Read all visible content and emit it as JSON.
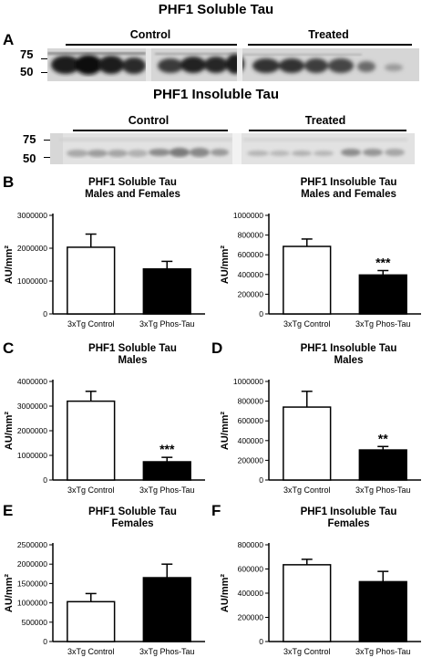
{
  "blots": [
    {
      "title": "PHF1 Soluble Tau",
      "panel_letter": "A",
      "mw_markers": [
        "75",
        "50"
      ],
      "groups": [
        "Control",
        "Treated"
      ],
      "image_label": "western-blot-soluble"
    },
    {
      "title": "PHF1 Insoluble Tau",
      "panel_letter": "",
      "mw_markers": [
        "75",
        "50"
      ],
      "groups": [
        "Control",
        "Treated"
      ],
      "image_label": "western-blot-insoluble"
    }
  ],
  "colors": {
    "control_bar": "#ffffff",
    "treated_bar": "#000000",
    "axis": "#000000"
  },
  "chart_data": [
    {
      "type": "bar",
      "panel_letter": "B",
      "title": "PHF1 Soluble Tau",
      "subtitle": "Males and Females",
      "xlabel": "",
      "ylabel": "AU/mm²",
      "categories": [
        "3xTg Control",
        "3xTg Phos-Tau"
      ],
      "values": [
        2030000,
        1370000
      ],
      "errors": [
        400000,
        230000
      ],
      "significance": [
        "",
        ""
      ],
      "ylim": [
        0,
        3000000
      ],
      "yticks": [
        0,
        1000000,
        2000000,
        3000000
      ],
      "ytick_labels": [
        "0",
        "1000000",
        "2000000",
        "3000000"
      ]
    },
    {
      "type": "bar",
      "panel_letter": "",
      "title": "PHF1 Insoluble Tau",
      "subtitle": "Males and Females",
      "xlabel": "",
      "ylabel": "AU/mm²",
      "categories": [
        "3xTg Control",
        "3xTg Phos-Tau"
      ],
      "values": [
        685000,
        395000
      ],
      "errors": [
        75000,
        45000
      ],
      "significance": [
        "",
        "***"
      ],
      "ylim": [
        0,
        1000000
      ],
      "yticks": [
        0,
        200000,
        400000,
        600000,
        800000,
        1000000
      ],
      "ytick_labels": [
        "0",
        "200000",
        "400000",
        "600000",
        "800000",
        "1000000"
      ]
    },
    {
      "type": "bar",
      "panel_letter": "C",
      "title": "PHF1 Soluble Tau",
      "subtitle": "Males",
      "xlabel": "",
      "ylabel": "AU/mm²",
      "categories": [
        "3xTg Control",
        "3xTg Phos-Tau"
      ],
      "values": [
        3200000,
        740000
      ],
      "errors": [
        400000,
        180000
      ],
      "significance": [
        "",
        "***"
      ],
      "ylim": [
        0,
        4000000
      ],
      "yticks": [
        0,
        1000000,
        2000000,
        3000000,
        4000000
      ],
      "ytick_labels": [
        "0",
        "1000000",
        "2000000",
        "3000000",
        "4000000"
      ]
    },
    {
      "type": "bar",
      "panel_letter": "D",
      "title": "PHF1 Insoluble Tau",
      "subtitle": "Males",
      "xlabel": "",
      "ylabel": "AU/mm²",
      "categories": [
        "3xTg Control",
        "3xTg Phos-Tau"
      ],
      "values": [
        740000,
        305000
      ],
      "errors": [
        160000,
        35000
      ],
      "significance": [
        "",
        "**"
      ],
      "ylim": [
        0,
        1000000
      ],
      "yticks": [
        0,
        200000,
        400000,
        600000,
        800000,
        1000000
      ],
      "ytick_labels": [
        "0",
        "200000",
        "400000",
        "600000",
        "800000",
        "1000000"
      ]
    },
    {
      "type": "bar",
      "panel_letter": "E",
      "title": "PHF1 Soluble Tau",
      "subtitle": "Females",
      "xlabel": "",
      "ylabel": "AU/mm²",
      "categories": [
        "3xTg Control",
        "3xTg Phos-Tau"
      ],
      "values": [
        1030000,
        1650000
      ],
      "errors": [
        210000,
        350000
      ],
      "significance": [
        "",
        ""
      ],
      "ylim": [
        0,
        2500000
      ],
      "yticks": [
        0,
        500000,
        1000000,
        1500000,
        2000000,
        2500000
      ],
      "ytick_labels": [
        "0",
        "500000",
        "1000000",
        "1500000",
        "2000000",
        "2500000"
      ]
    },
    {
      "type": "bar",
      "panel_letter": "F",
      "title": "PHF1 Insoluble Tau",
      "subtitle": "Females",
      "xlabel": "",
      "ylabel": "AU/mm²",
      "categories": [
        "3xTg Control",
        "3xTg Phos-Tau"
      ],
      "values": [
        635000,
        495000
      ],
      "errors": [
        45000,
        85000
      ],
      "significance": [
        "",
        ""
      ],
      "ylim": [
        0,
        800000
      ],
      "yticks": [
        0,
        200000,
        400000,
        600000,
        800000
      ],
      "ytick_labels": [
        "0",
        "200000",
        "400000",
        "600000",
        "800000"
      ]
    }
  ]
}
